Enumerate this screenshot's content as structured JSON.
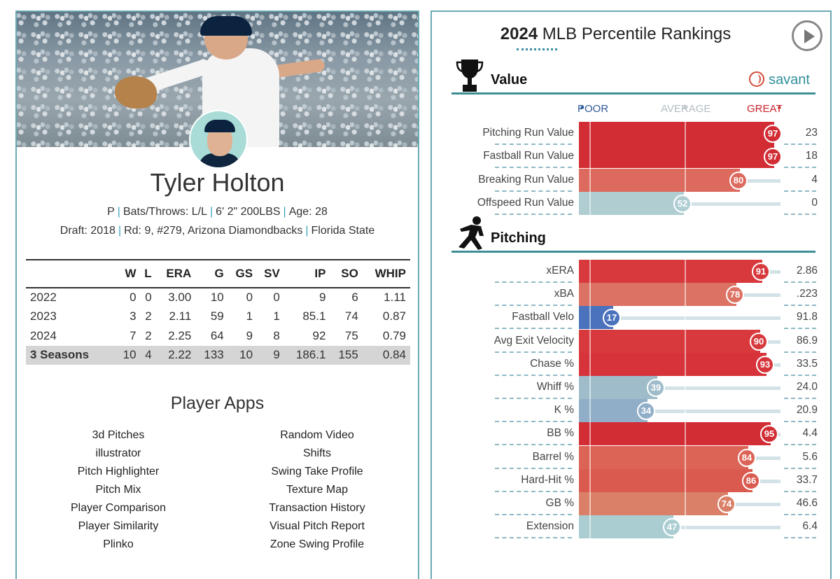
{
  "player": {
    "name": "Tyler Holton",
    "position": "P",
    "bats_throws_label": "Bats/Throws:",
    "bats_throws": "L/L",
    "height_weight": "6' 2\" 200LBS",
    "age_label": "Age:",
    "age": "28",
    "draft_label": "Draft:",
    "draft_year": "2018",
    "draft_pick": "Rd: 9, #279,",
    "draft_team": "Arizona Diamondbacks",
    "college": "Florida State"
  },
  "stats": {
    "headers": [
      "",
      "W",
      "L",
      "ERA",
      "G",
      "GS",
      "SV",
      "IP",
      "SO",
      "WHIP"
    ],
    "rows": [
      [
        "2022",
        "0",
        "0",
        "3.00",
        "10",
        "0",
        "0",
        "9",
        "6",
        "1.11"
      ],
      [
        "2023",
        "3",
        "2",
        "2.11",
        "59",
        "1",
        "1",
        "85.1",
        "74",
        "0.87"
      ],
      [
        "2024",
        "7",
        "2",
        "2.25",
        "64",
        "9",
        "8",
        "92",
        "75",
        "0.79"
      ]
    ],
    "total": [
      "3 Seasons",
      "10",
      "4",
      "2.22",
      "133",
      "10",
      "9",
      "186.1",
      "155",
      "0.84"
    ]
  },
  "apps": {
    "title": "Player Apps",
    "left": [
      "3d Pitches",
      "illustrator",
      "Pitch Highlighter",
      "Pitch Mix",
      "Player Comparison",
      "Player Similarity",
      "Plinko"
    ],
    "right": [
      "Random Video",
      "Shifts",
      "Swing Take Profile",
      "Texture Map",
      "Transaction History",
      "Visual Pitch Report",
      "Zone Swing Profile"
    ]
  },
  "rankings": {
    "year": "2024",
    "title_rest": "MLB Percentile Rankings",
    "brand": "savant",
    "scale": {
      "poor": "POOR",
      "average": "AVERAGE",
      "great": "GREAT"
    },
    "sections": [
      {
        "id": "value",
        "label": "Value",
        "icon": "trophy-icon",
        "metrics": [
          {
            "label": "Pitching Run Value",
            "percentile": 97,
            "value": "23",
            "color": "#d22d35"
          },
          {
            "label": "Fastball Run Value",
            "percentile": 97,
            "value": "18",
            "color": "#d22d35"
          },
          {
            "label": "Breaking Run Value",
            "percentile": 80,
            "value": "4",
            "color": "#dc6a5e"
          },
          {
            "label": "Offspeed Run Value",
            "percentile": 52,
            "value": "0",
            "color": "#b0cdd2"
          }
        ]
      },
      {
        "id": "pitching",
        "label": "Pitching",
        "icon": "pitcher-icon",
        "metrics": [
          {
            "label": "xERA",
            "percentile": 91,
            "value": "2.86",
            "color": "#d8393d"
          },
          {
            "label": "xBA",
            "percentile": 78,
            "value": ".223",
            "color": "#dc7263"
          },
          {
            "label": "Fastball Velo",
            "percentile": 17,
            "value": "91.8",
            "color": "#4a72bd"
          },
          {
            "label": "Avg Exit Velocity",
            "percentile": 90,
            "value": "86.9",
            "color": "#d8393d"
          },
          {
            "label": "Chase %",
            "percentile": 93,
            "value": "33.5",
            "color": "#d6333a"
          },
          {
            "label": "Whiff %",
            "percentile": 39,
            "value": "24.0",
            "color": "#9fbcca"
          },
          {
            "label": "K %",
            "percentile": 34,
            "value": "20.9",
            "color": "#90aec8"
          },
          {
            "label": "BB %",
            "percentile": 95,
            "value": "4.4",
            "color": "#d22d35"
          },
          {
            "label": "Barrel %",
            "percentile": 84,
            "value": "5.6",
            "color": "#dc6456"
          },
          {
            "label": "Hard-Hit %",
            "percentile": 86,
            "value": "33.7",
            "color": "#db5a4f"
          },
          {
            "label": "GB %",
            "percentile": 74,
            "value": "46.6",
            "color": "#da8069"
          },
          {
            "label": "Extension",
            "percentile": 47,
            "value": "6.4",
            "color": "#aacdd1"
          }
        ]
      }
    ]
  }
}
